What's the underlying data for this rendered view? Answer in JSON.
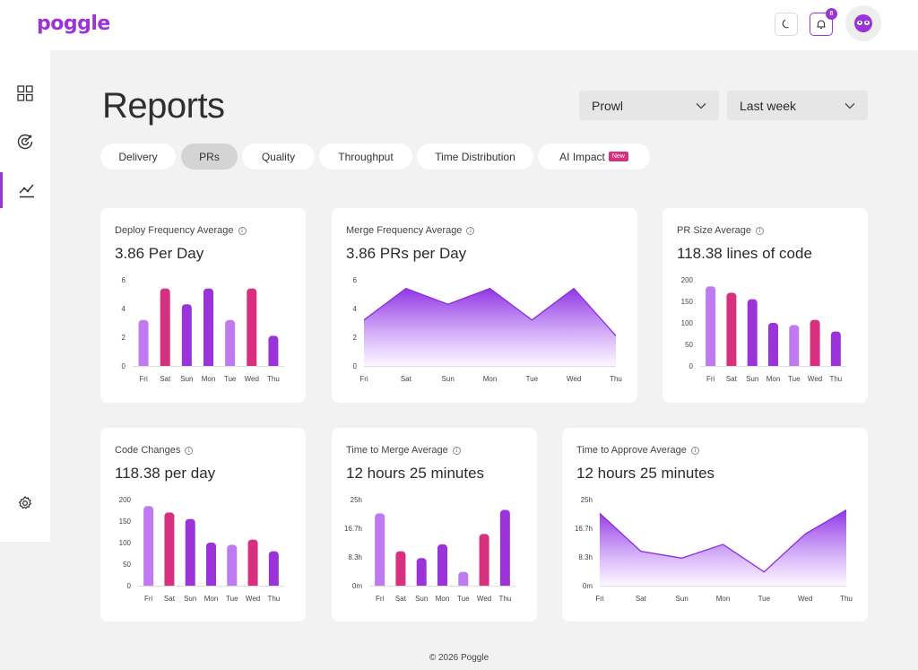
{
  "header": {
    "logo": "poggle",
    "notification_count": "8",
    "icons": {
      "theme": "moon-icon",
      "notifications": "bell-icon",
      "avatar": "avatar-icon"
    }
  },
  "sidebar": {
    "items": [
      {
        "name": "dashboard",
        "icon": "grid-icon"
      },
      {
        "name": "goals",
        "icon": "target-icon"
      },
      {
        "name": "reports",
        "icon": "chart-line-icon",
        "active": true
      },
      {
        "name": "settings",
        "icon": "gear-icon"
      }
    ]
  },
  "page": {
    "title": "Reports",
    "filters": {
      "team": "Prowl",
      "range": "Last week"
    }
  },
  "tabs": [
    {
      "label": "Delivery",
      "active": false
    },
    {
      "label": "PRs",
      "active": true
    },
    {
      "label": "Quality",
      "active": false
    },
    {
      "label": "Throughput",
      "active": false
    },
    {
      "label": "Time Distribution",
      "active": false
    },
    {
      "label": "AI Impact",
      "active": false,
      "badge": "New"
    }
  ],
  "colors": {
    "light_purple": "#c07af0",
    "pink": "#d7307f",
    "purple": "#9b34d8",
    "accent": "#9b34d8"
  },
  "chart_data": [
    {
      "id": "deploy",
      "type": "bar",
      "title": "Deploy Frequency Average",
      "value_label": "3.86 Per Day",
      "categories": [
        "Fri",
        "Sat",
        "Sun",
        "Mon",
        "Tue",
        "Wed",
        "Thu"
      ],
      "values": [
        3.2,
        5.4,
        4.3,
        5.4,
        3.2,
        5.4,
        2.1
      ],
      "colors": [
        "light_purple",
        "pink",
        "purple",
        "purple",
        "light_purple",
        "pink",
        "purple"
      ],
      "ylim": [
        0,
        6
      ],
      "yticks": [
        "0",
        "2",
        "4",
        "6"
      ]
    },
    {
      "id": "merge",
      "type": "area",
      "title": "Merge Frequency Average",
      "value_label": "3.86 PRs per Day",
      "categories": [
        "Fri",
        "Sat",
        "Sun",
        "Mon",
        "Tue",
        "Wed",
        "Thu"
      ],
      "values": [
        3.2,
        5.4,
        4.3,
        5.4,
        3.2,
        5.4,
        2.1
      ],
      "ylim": [
        0,
        6
      ],
      "yticks": [
        "0",
        "2",
        "4",
        "6"
      ]
    },
    {
      "id": "prsize",
      "type": "bar",
      "title": "PR Size Average",
      "value_label": "118.38 lines of code",
      "categories": [
        "Fri",
        "Sat",
        "Sun",
        "Mon",
        "Tue",
        "Wed",
        "Thu"
      ],
      "values": [
        185,
        170,
        155,
        100,
        95,
        107,
        80
      ],
      "colors": [
        "light_purple",
        "pink",
        "purple",
        "purple",
        "light_purple",
        "pink",
        "purple"
      ],
      "ylim": [
        0,
        200
      ],
      "yticks": [
        "0",
        "50",
        "100",
        "150",
        "200"
      ]
    },
    {
      "id": "codechanges",
      "type": "bar",
      "title": "Code Changes",
      "value_label": "118.38 per day",
      "categories": [
        "Fri",
        "Sat",
        "Sun",
        "Mon",
        "Tue",
        "Wed",
        "Thu"
      ],
      "values": [
        185,
        170,
        155,
        100,
        95,
        107,
        80
      ],
      "colors": [
        "light_purple",
        "pink",
        "purple",
        "purple",
        "light_purple",
        "pink",
        "purple"
      ],
      "ylim": [
        0,
        200
      ],
      "yticks": [
        "0",
        "50",
        "100",
        "150",
        "200"
      ]
    },
    {
      "id": "ttm",
      "type": "bar",
      "title": "Time to Merge Average",
      "value_label": "12 hours 25 minutes",
      "categories": [
        "Fri",
        "Sat",
        "Sun",
        "Mon",
        "Tue",
        "Wed",
        "Thu"
      ],
      "values": [
        21,
        10,
        8,
        12,
        4,
        15,
        22
      ],
      "colors": [
        "light_purple",
        "pink",
        "purple",
        "purple",
        "light_purple",
        "pink",
        "purple"
      ],
      "ylim": [
        0,
        25
      ],
      "yticks": [
        "0m",
        "8.3h",
        "16.7h",
        "25h"
      ]
    },
    {
      "id": "tta",
      "type": "area",
      "title": "Time to Approve Average",
      "value_label": "12 hours 25 minutes",
      "categories": [
        "Fri",
        "Sat",
        "Sun",
        "Mon",
        "Tue",
        "Wed",
        "Thu"
      ],
      "values": [
        21,
        10,
        8,
        12,
        4,
        15,
        22
      ],
      "ylim": [
        0,
        25
      ],
      "yticks": [
        "0m",
        "8.3h",
        "16.7h",
        "25h"
      ]
    }
  ],
  "footer": {
    "text": "© 2026 Poggle"
  }
}
